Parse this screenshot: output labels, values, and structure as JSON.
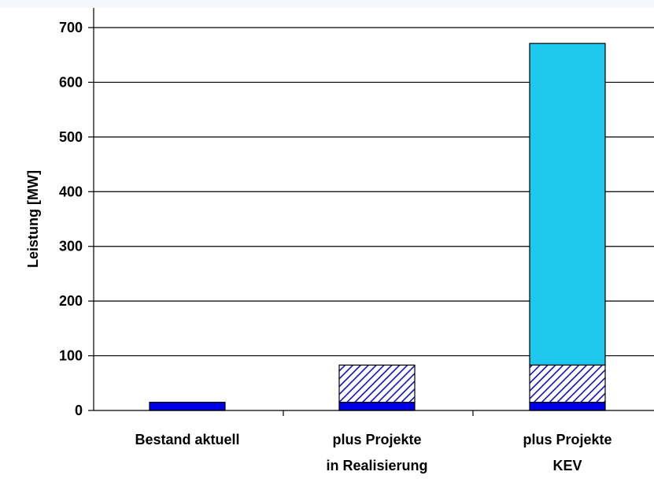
{
  "chart_data": {
    "type": "bar",
    "stacked": true,
    "title": "",
    "xlabel": "",
    "ylabel": "Leistung [MW]",
    "ylim": [
      0,
      700
    ],
    "yticks": [
      0,
      100,
      200,
      300,
      400,
      500,
      600,
      700
    ],
    "grid": true,
    "legend": "none",
    "categories": [
      [
        "Bestand aktuell"
      ],
      [
        "plus Projekte",
        "in Realisierung"
      ],
      [
        "plus Projekte",
        "KEV"
      ]
    ],
    "series": [
      {
        "values": [
          15,
          15,
          15
        ],
        "color": "#0000e6",
        "pattern": "solid"
      },
      {
        "values": [
          0,
          68,
          68
        ],
        "color": "#1010c8",
        "pattern": "diagonal-hatch"
      },
      {
        "values": [
          0,
          0,
          588
        ],
        "color": "#1ec8ec",
        "pattern": "solid"
      }
    ]
  }
}
